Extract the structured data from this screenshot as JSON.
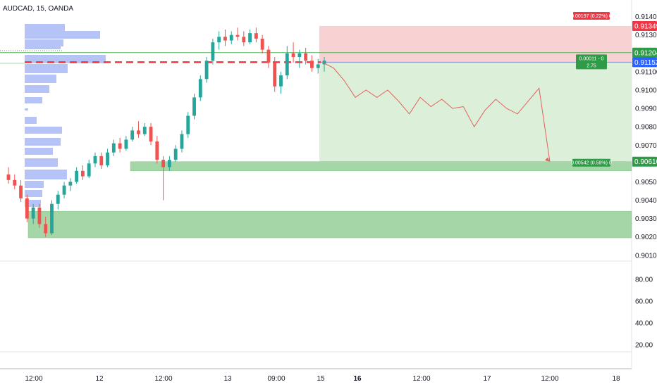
{
  "colors": {
    "up": "#26a69a",
    "down": "#ef5350",
    "volume_profile": "#a9b8f5",
    "zone_green": "#a5d6a7",
    "target_area": "#dcefd9",
    "stop_area": "#f8d2d2",
    "line_green": "#4caf50",
    "dashed_red": "#f23645",
    "projection": "#e3605c",
    "tag_red": "#f23645",
    "tag_green": "#2e9b46",
    "tag_blue": "#2962ff",
    "grid": "#e0e3eb",
    "text": "#131722"
  },
  "chart_data": {
    "type": "candlestick",
    "title": "AUDCAD, 15, OANDA",
    "x_ticks": [
      "12:00",
      "12",
      "12:00",
      "13",
      "09:00",
      "15",
      "16",
      "12:00",
      "17",
      "12:00",
      "18"
    ],
    "price_axis": {
      "ticks": [
        "0.91400",
        "0.91300",
        "0.91100",
        "0.91000",
        "0.90900",
        "0.90800",
        "0.90700",
        "0.90500",
        "0.90400",
        "0.90300",
        "0.90200",
        "0.90100"
      ],
      "range": [
        0.9008,
        0.9146
      ]
    },
    "price_tags": [
      {
        "value": "0.91349",
        "color": "red"
      },
      {
        "value": "0.91204",
        "color": "green"
      },
      {
        "value": "0.91152",
        "color": "blue"
      },
      {
        "value": "0.90610",
        "color": "green"
      }
    ],
    "trade": {
      "entry": 0.91152,
      "stop": 0.91349,
      "target": 0.9061,
      "stop_label": "0.00197 (0.22%) 0",
      "entry_label": "0.00011 - 0",
      "ratio_label": "2.75",
      "target_label": "0.00542 (0.59%) 0"
    },
    "zones": [
      {
        "from": 0.9056,
        "to": 0.9061
      },
      {
        "from": 0.90195,
        "to": 0.9034
      }
    ],
    "lines": {
      "green_level": 0.91204,
      "dashed_red_level": 0.91152
    },
    "projection_path": [
      0.9115,
      0.9112,
      0.9105,
      0.9096,
      0.91,
      0.9096,
      0.91,
      0.9094,
      0.9087,
      0.9096,
      0.9091,
      0.9095,
      0.909,
      0.9091,
      0.908,
      0.9089,
      0.9095,
      0.909,
      0.9087,
      0.9094,
      0.9101,
      0.9061
    ],
    "candles": [
      [
        0.9054,
        0.9058,
        0.9049,
        0.9051
      ],
      [
        0.9051,
        0.9054,
        0.9046,
        0.9048
      ],
      [
        0.9048,
        0.9051,
        0.9039,
        0.9041
      ],
      [
        0.9041,
        0.9043,
        0.9028,
        0.903
      ],
      [
        0.903,
        0.9038,
        0.9027,
        0.9036
      ],
      [
        0.9036,
        0.9038,
        0.9025,
        0.9027
      ],
      [
        0.9027,
        0.9031,
        0.902,
        0.9022
      ],
      [
        0.9022,
        0.904,
        0.9021,
        0.9038
      ],
      [
        0.9038,
        0.9045,
        0.9035,
        0.9043
      ],
      [
        0.9043,
        0.905,
        0.9041,
        0.9048
      ],
      [
        0.9048,
        0.9052,
        0.9045,
        0.905
      ],
      [
        0.905,
        0.9058,
        0.9049,
        0.9056
      ],
      [
        0.9056,
        0.9059,
        0.9051,
        0.9053
      ],
      [
        0.9053,
        0.9062,
        0.9052,
        0.906
      ],
      [
        0.906,
        0.9066,
        0.9058,
        0.9064
      ],
      [
        0.9064,
        0.9066,
        0.9057,
        0.9059
      ],
      [
        0.9059,
        0.9068,
        0.9058,
        0.9066
      ],
      [
        0.9066,
        0.9073,
        0.9064,
        0.9071
      ],
      [
        0.9071,
        0.9074,
        0.9066,
        0.9068
      ],
      [
        0.9068,
        0.9075,
        0.9067,
        0.9073
      ],
      [
        0.9073,
        0.908,
        0.9072,
        0.9078
      ],
      [
        0.9078,
        0.9083,
        0.9074,
        0.9076
      ],
      [
        0.9076,
        0.9082,
        0.9075,
        0.908
      ],
      [
        0.908,
        0.9082,
        0.907,
        0.9072
      ],
      [
        0.9072,
        0.9075,
        0.906,
        0.9062
      ],
      [
        0.9062,
        0.9064,
        0.904,
        0.9058
      ],
      [
        0.9058,
        0.9064,
        0.9056,
        0.9062
      ],
      [
        0.9062,
        0.907,
        0.9061,
        0.9068
      ],
      [
        0.9068,
        0.9078,
        0.9066,
        0.9076
      ],
      [
        0.9076,
        0.9088,
        0.9074,
        0.9086
      ],
      [
        0.9086,
        0.9098,
        0.9084,
        0.9096
      ],
      [
        0.9096,
        0.9108,
        0.9094,
        0.9106
      ],
      [
        0.9106,
        0.9118,
        0.9104,
        0.9116
      ],
      [
        0.9116,
        0.9128,
        0.9114,
        0.9126
      ],
      [
        0.9126,
        0.9132,
        0.9122,
        0.9129
      ],
      [
        0.9129,
        0.9133,
        0.9124,
        0.9127
      ],
      [
        0.9127,
        0.9132,
        0.9125,
        0.913
      ],
      [
        0.913,
        0.9134,
        0.9127,
        0.9129
      ],
      [
        0.9129,
        0.9132,
        0.9124,
        0.9126
      ],
      [
        0.9126,
        0.9133,
        0.9125,
        0.9131
      ],
      [
        0.9131,
        0.9134,
        0.9126,
        0.9128
      ],
      [
        0.9128,
        0.913,
        0.912,
        0.9122
      ],
      [
        0.9122,
        0.9124,
        0.9112,
        0.9115
      ],
      [
        0.9115,
        0.9118,
        0.9099,
        0.9102
      ],
      [
        0.9102,
        0.911,
        0.9098,
        0.9108
      ],
      [
        0.9108,
        0.9124,
        0.9106,
        0.912
      ],
      [
        0.912,
        0.9126,
        0.9115,
        0.9118
      ],
      [
        0.9118,
        0.9122,
        0.9112,
        0.912
      ],
      [
        0.912,
        0.9123,
        0.9114,
        0.9116
      ],
      [
        0.9116,
        0.9119,
        0.911,
        0.9112
      ],
      [
        0.9112,
        0.9117,
        0.9109,
        0.9114
      ],
      [
        0.9114,
        0.9118,
        0.911,
        0.9116
      ]
    ]
  },
  "sub_axis": {
    "ticks": [
      "80.00",
      "60.00",
      "40.00",
      "20.00"
    ]
  }
}
